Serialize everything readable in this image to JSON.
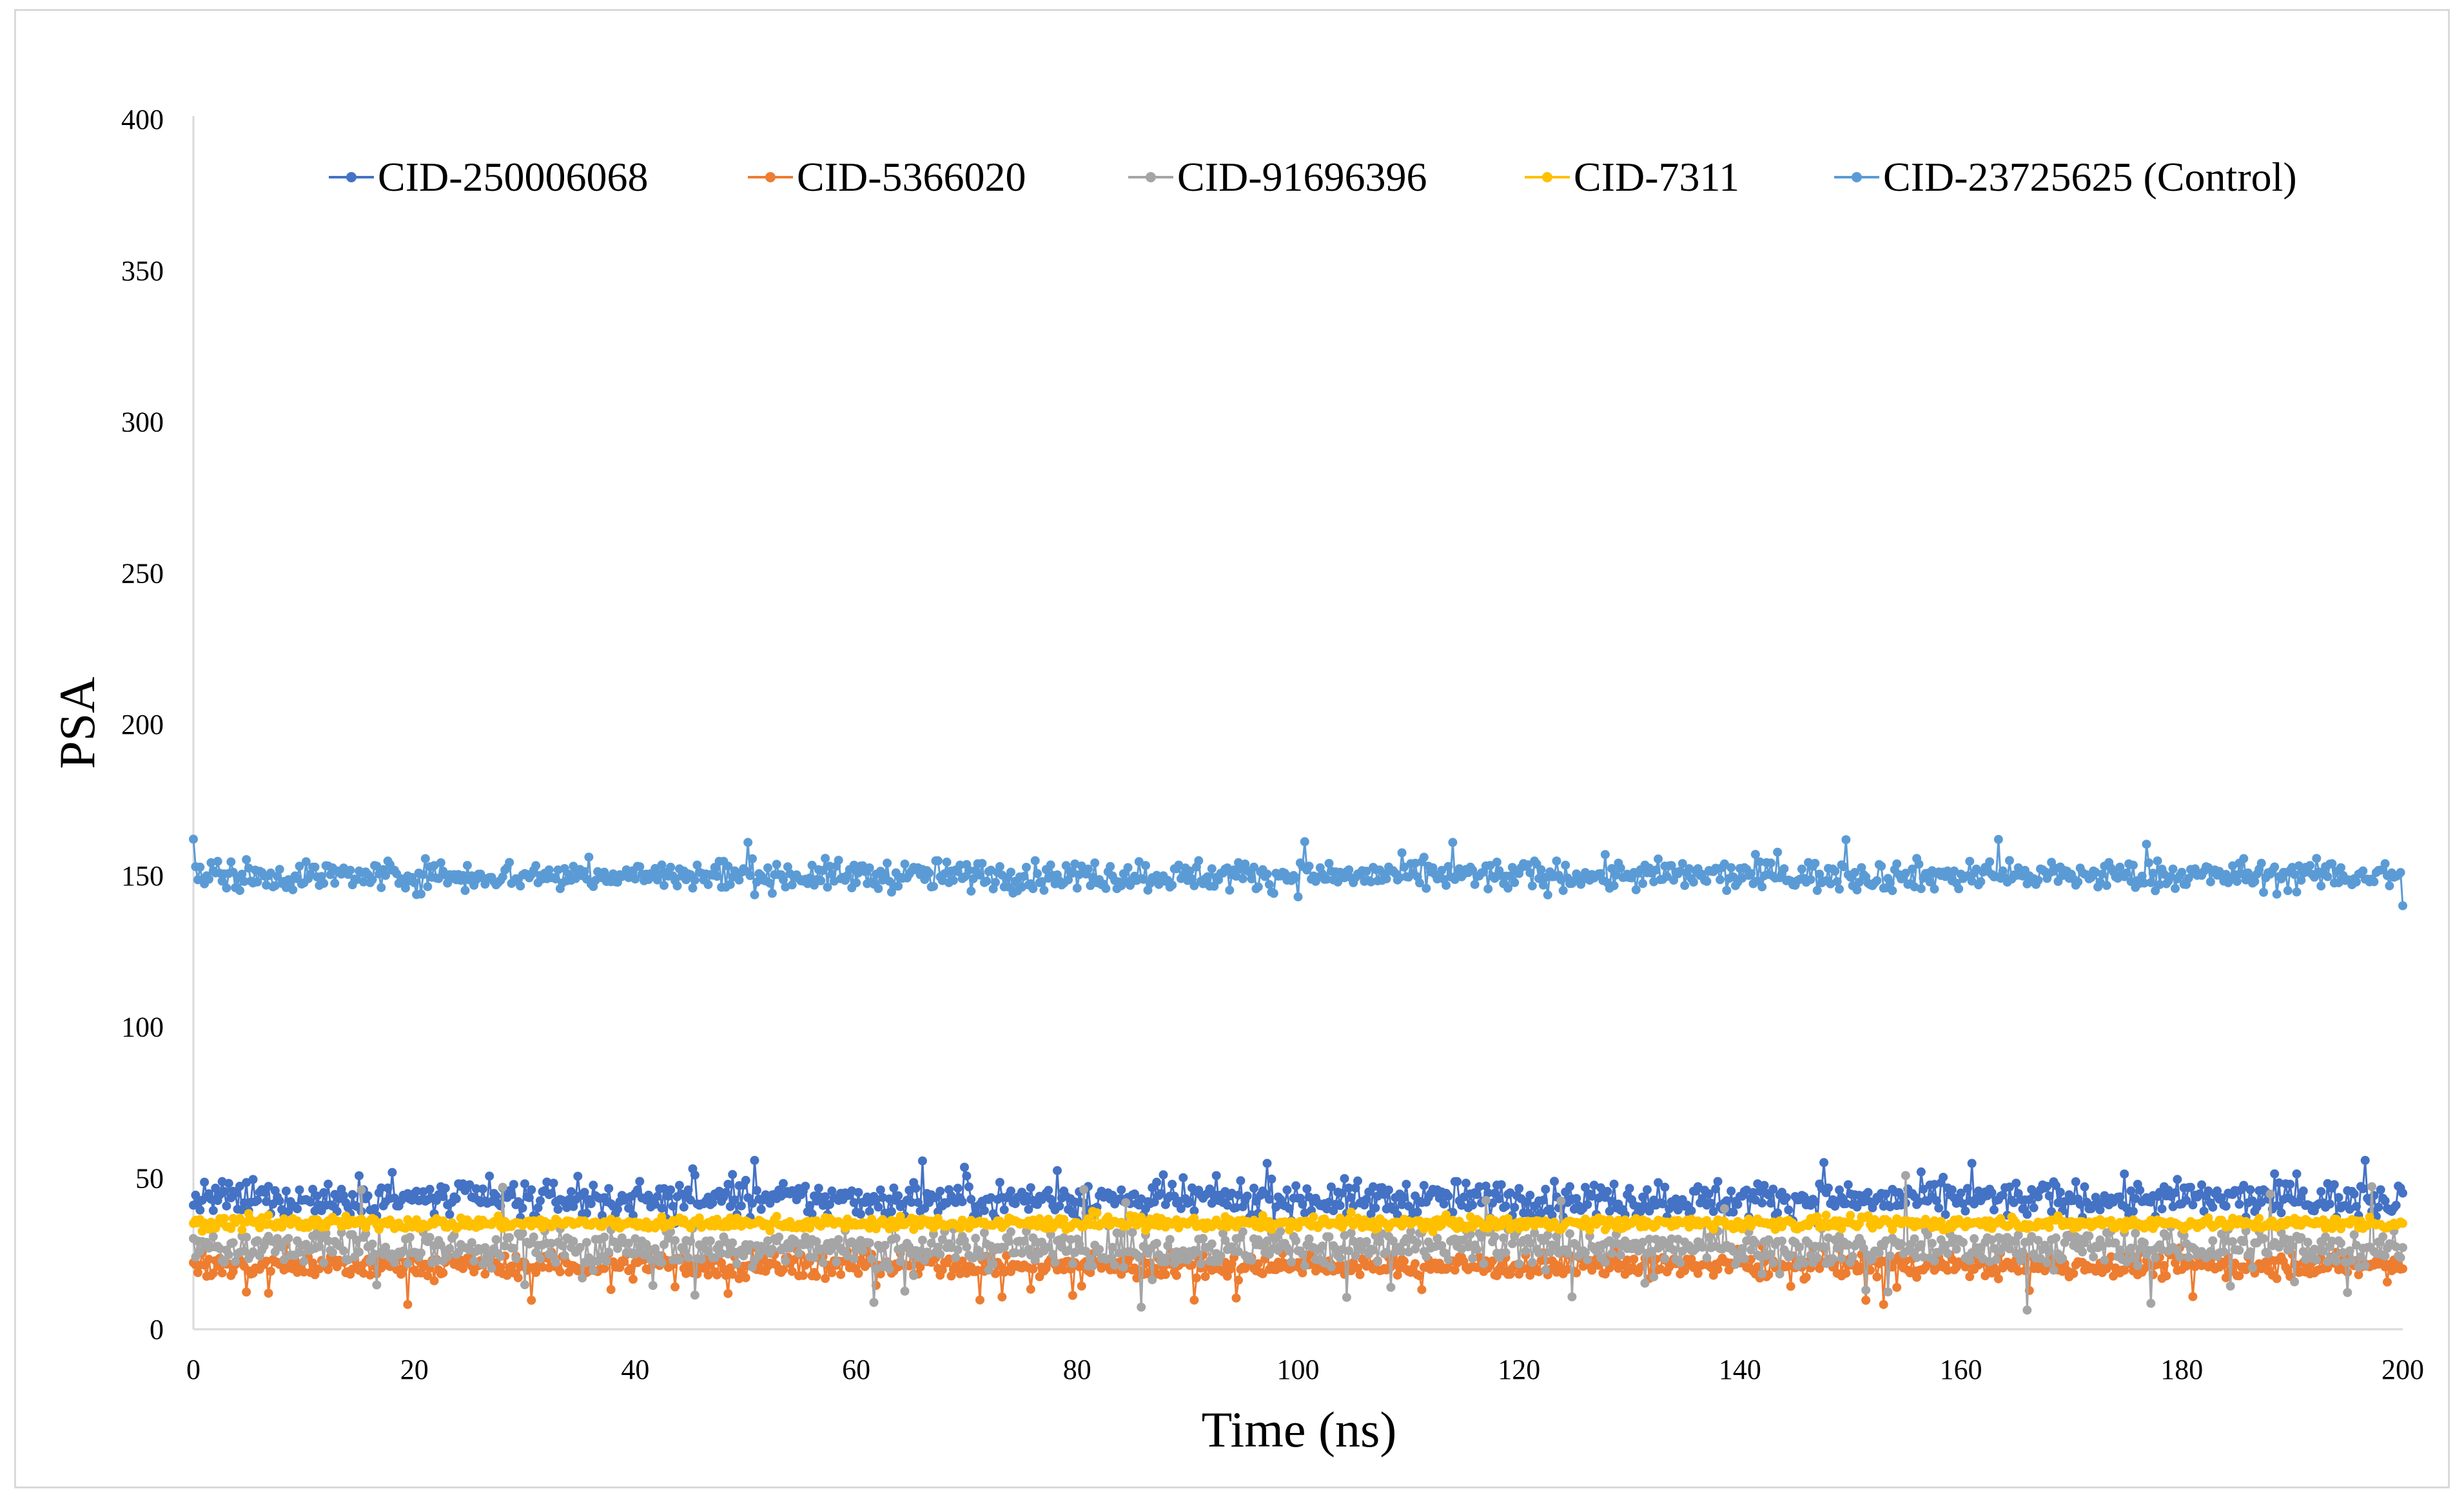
{
  "chart_data": {
    "type": "line",
    "title": "",
    "xlabel": "Time (ns)",
    "ylabel": "PSA",
    "xlim": [
      0,
      200
    ],
    "ylim": [
      0,
      400
    ],
    "x_ticks": [
      0,
      20,
      40,
      60,
      80,
      100,
      120,
      140,
      160,
      180,
      200
    ],
    "y_ticks": [
      0,
      50,
      100,
      150,
      200,
      250,
      300,
      350,
      400
    ],
    "grid": false,
    "legend_position": "top",
    "points_per_series": 1001,
    "series": [
      {
        "name": "CID-250006068",
        "color": "#4472c4",
        "mean": 43,
        "noise": 3,
        "min": 35,
        "max": 56,
        "start": 41,
        "end": 45
      },
      {
        "name": "CID-5366020",
        "color": "#ed7d31",
        "mean": 21,
        "noise": 2,
        "min": 8,
        "max": 28,
        "start": 22,
        "end": 20
      },
      {
        "name": "CID-91696396",
        "color": "#a5a5a5",
        "mean": 27,
        "noise": 3,
        "min": 6,
        "max": 51,
        "start": 30,
        "end": 27
      },
      {
        "name": "CID-7311",
        "color": "#ffc000",
        "mean": 35,
        "noise": 1,
        "min": 31,
        "max": 39,
        "start": 35,
        "end": 35
      },
      {
        "name": "CID-23725625 (Control)",
        "color": "#5b9bd5",
        "mean": 150,
        "noise": 2.5,
        "min": 140,
        "max": 162,
        "start": 162,
        "end": 140
      }
    ]
  }
}
